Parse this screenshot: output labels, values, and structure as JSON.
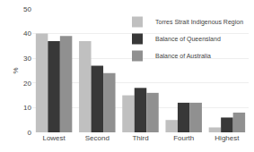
{
  "chart_data": {
    "type": "bar",
    "categories": [
      "Lowest",
      "Second",
      "Third",
      "Fourth",
      "Highest"
    ],
    "series": [
      {
        "name": "Torres Strait Indigenous Region",
        "color": "#c0c0c0",
        "values": [
          40,
          37,
          15,
          5,
          2
        ]
      },
      {
        "name": "Balance of Queensland",
        "color": "#383838",
        "values": [
          37,
          27,
          18,
          12,
          6
        ]
      },
      {
        "name": "Balance of Australia",
        "color": "#909090",
        "values": [
          39,
          24,
          16,
          12,
          8
        ]
      }
    ],
    "ylabel": "%",
    "ylim": [
      0,
      50
    ],
    "yticks": [
      0,
      10,
      20,
      30,
      40,
      50
    ],
    "grid": true,
    "legend": "upper right"
  }
}
